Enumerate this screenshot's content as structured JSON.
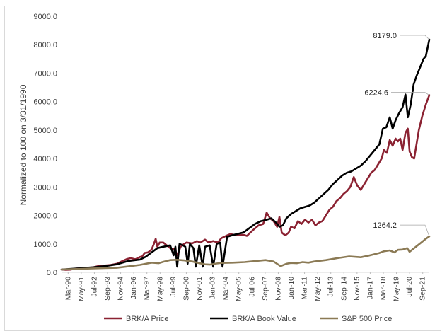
{
  "chart_data": {
    "type": "line",
    "title": "",
    "xlabel": "",
    "ylabel": "Normalized to 100 on 3/31/1990",
    "ylim": [
      0,
      9000
    ],
    "yticks": [
      "0.0",
      "1000.0",
      "2000.0",
      "3000.0",
      "4000.0",
      "5000.0",
      "6000.0",
      "7000.0",
      "8000.0",
      "9000.0"
    ],
    "grid": false,
    "legend": "bottom",
    "x_tick_labels": [
      "Mar-90",
      "May-91",
      "Jul-92",
      "Sep-93",
      "Nov-94",
      "Jan-96",
      "Mar-97",
      "May-98",
      "Jul-99",
      "Sep-00",
      "Nov-01",
      "Jan-03",
      "Mar-04",
      "May-05",
      "Jul-06",
      "Sep-07",
      "Nov-08",
      "Jan-10",
      "Mar-11",
      "May-12",
      "Jul-13",
      "Sep-14",
      "Nov-15",
      "Jan-17",
      "Mar-18",
      "May-19",
      "Jul-20",
      "Sep-21"
    ],
    "x_range": [
      1990.25,
      2021.9
    ],
    "series": [
      {
        "name": "BRK/A Price",
        "color": "#8B2232",
        "points": [
          [
            1990.25,
            100
          ],
          [
            1990.6,
            90
          ],
          [
            1991.0,
            95
          ],
          [
            1991.4,
            130
          ],
          [
            1992.0,
            150
          ],
          [
            1992.5,
            160
          ],
          [
            1993.0,
            180
          ],
          [
            1993.5,
            230
          ],
          [
            1994.0,
            240
          ],
          [
            1994.5,
            260
          ],
          [
            1995.0,
            300
          ],
          [
            1995.5,
            400
          ],
          [
            1995.9,
            470
          ],
          [
            1996.2,
            500
          ],
          [
            1996.6,
            460
          ],
          [
            1997.0,
            540
          ],
          [
            1997.2,
            560
          ],
          [
            1997.4,
            680
          ],
          [
            1997.7,
            700
          ],
          [
            1998.0,
            800
          ],
          [
            1998.2,
            1000
          ],
          [
            1998.35,
            1180
          ],
          [
            1998.5,
            900
          ],
          [
            1998.7,
            1050
          ],
          [
            1999.0,
            1050
          ],
          [
            1999.3,
            950
          ],
          [
            1999.6,
            850
          ],
          [
            2000.0,
            800
          ],
          [
            2000.2,
            600
          ],
          [
            2000.5,
            900
          ],
          [
            2000.8,
            1000
          ],
          [
            2001.0,
            1050
          ],
          [
            2001.5,
            1020
          ],
          [
            2001.9,
            1100
          ],
          [
            2002.2,
            1050
          ],
          [
            2002.6,
            1150
          ],
          [
            2002.9,
            1050
          ],
          [
            2003.3,
            1100
          ],
          [
            2003.7,
            1050
          ],
          [
            2004.0,
            1200
          ],
          [
            2004.4,
            1280
          ],
          [
            2004.8,
            1350
          ],
          [
            2005.2,
            1300
          ],
          [
            2005.5,
            1300
          ],
          [
            2005.9,
            1320
          ],
          [
            2006.2,
            1280
          ],
          [
            2006.5,
            1400
          ],
          [
            2006.9,
            1550
          ],
          [
            2007.2,
            1650
          ],
          [
            2007.6,
            1700
          ],
          [
            2007.9,
            2100
          ],
          [
            2008.2,
            1900
          ],
          [
            2008.5,
            1800
          ],
          [
            2008.8,
            1600
          ],
          [
            2009.0,
            1950
          ],
          [
            2009.2,
            1400
          ],
          [
            2009.5,
            1300
          ],
          [
            2009.8,
            1400
          ],
          [
            2010.0,
            1600
          ],
          [
            2010.3,
            1550
          ],
          [
            2010.6,
            1800
          ],
          [
            2010.9,
            1700
          ],
          [
            2011.2,
            1850
          ],
          [
            2011.5,
            1750
          ],
          [
            2011.8,
            1850
          ],
          [
            2012.1,
            1650
          ],
          [
            2012.4,
            1750
          ],
          [
            2012.7,
            1800
          ],
          [
            2013.0,
            2000
          ],
          [
            2013.3,
            2200
          ],
          [
            2013.6,
            2300
          ],
          [
            2013.9,
            2500
          ],
          [
            2014.2,
            2600
          ],
          [
            2014.5,
            2750
          ],
          [
            2014.8,
            2850
          ],
          [
            2015.1,
            3000
          ],
          [
            2015.4,
            3350
          ],
          [
            2015.7,
            3050
          ],
          [
            2016.0,
            2900
          ],
          [
            2016.3,
            3100
          ],
          [
            2016.6,
            3300
          ],
          [
            2016.9,
            3500
          ],
          [
            2017.2,
            3600
          ],
          [
            2017.5,
            3800
          ],
          [
            2017.8,
            4000
          ],
          [
            2018.0,
            4300
          ],
          [
            2018.25,
            4200
          ],
          [
            2018.5,
            4650
          ],
          [
            2018.75,
            4450
          ],
          [
            2019.0,
            4700
          ],
          [
            2019.2,
            4600
          ],
          [
            2019.4,
            4700
          ],
          [
            2019.6,
            4300
          ],
          [
            2019.85,
            4900
          ],
          [
            2020.05,
            5050
          ],
          [
            2020.2,
            4250
          ],
          [
            2020.4,
            4050
          ],
          [
            2020.6,
            4000
          ],
          [
            2020.8,
            4500
          ],
          [
            2021.0,
            5000
          ],
          [
            2021.3,
            5500
          ],
          [
            2021.6,
            5900
          ],
          [
            2021.9,
            6224.6
          ]
        ]
      },
      {
        "name": "BRK/A Book Value",
        "color": "#000000",
        "points": [
          [
            1990.25,
            100
          ],
          [
            1991.0,
            120
          ],
          [
            1992.0,
            150
          ],
          [
            1993.0,
            180
          ],
          [
            1994.0,
            220
          ],
          [
            1995.0,
            280
          ],
          [
            1996.0,
            400
          ],
          [
            1997.0,
            450
          ],
          [
            1997.5,
            550
          ],
          [
            1998.0,
            700
          ],
          [
            1998.5,
            850
          ],
          [
            1999.0,
            900
          ],
          [
            1999.6,
            950
          ],
          [
            1999.9,
            600
          ],
          [
            2000.05,
            900
          ],
          [
            2000.2,
            200
          ],
          [
            2000.4,
            1000
          ],
          [
            2000.7,
            950
          ],
          [
            2000.9,
            900
          ],
          [
            2001.1,
            300
          ],
          [
            2001.3,
            1000
          ],
          [
            2001.6,
            850
          ],
          [
            2001.8,
            200
          ],
          [
            2002.1,
            950
          ],
          [
            2002.4,
            200
          ],
          [
            2002.6,
            900
          ],
          [
            2003.0,
            950
          ],
          [
            2003.3,
            200
          ],
          [
            2003.6,
            1000
          ],
          [
            2003.9,
            1050
          ],
          [
            2004.1,
            200
          ],
          [
            2004.5,
            1250
          ],
          [
            2004.9,
            1300
          ],
          [
            2005.4,
            1350
          ],
          [
            2005.9,
            1400
          ],
          [
            2006.4,
            1550
          ],
          [
            2006.9,
            1700
          ],
          [
            2007.4,
            1800
          ],
          [
            2007.9,
            1850
          ],
          [
            2008.3,
            1900
          ],
          [
            2008.7,
            1750
          ],
          [
            2009.0,
            1600
          ],
          [
            2009.3,
            1650
          ],
          [
            2009.6,
            1900
          ],
          [
            2010.0,
            2050
          ],
          [
            2010.4,
            2150
          ],
          [
            2010.8,
            2250
          ],
          [
            2011.2,
            2300
          ],
          [
            2011.6,
            2350
          ],
          [
            2012.0,
            2450
          ],
          [
            2012.4,
            2600
          ],
          [
            2012.8,
            2750
          ],
          [
            2013.2,
            2900
          ],
          [
            2013.6,
            3100
          ],
          [
            2014.0,
            3250
          ],
          [
            2014.4,
            3400
          ],
          [
            2014.8,
            3500
          ],
          [
            2015.2,
            3550
          ],
          [
            2015.6,
            3650
          ],
          [
            2016.0,
            3750
          ],
          [
            2016.4,
            3900
          ],
          [
            2016.8,
            4100
          ],
          [
            2017.2,
            4300
          ],
          [
            2017.6,
            4500
          ],
          [
            2017.9,
            5050
          ],
          [
            2018.2,
            5100
          ],
          [
            2018.5,
            5450
          ],
          [
            2018.75,
            5050
          ],
          [
            2019.0,
            5350
          ],
          [
            2019.3,
            5600
          ],
          [
            2019.6,
            5800
          ],
          [
            2019.85,
            6250
          ],
          [
            2020.05,
            5450
          ],
          [
            2020.3,
            5900
          ],
          [
            2020.55,
            6600
          ],
          [
            2020.8,
            6900
          ],
          [
            2021.1,
            7200
          ],
          [
            2021.4,
            7500
          ],
          [
            2021.6,
            7600
          ],
          [
            2021.9,
            8179.0
          ]
        ]
      },
      {
        "name": "S&P 500 Price",
        "color": "#8B7A55",
        "points": [
          [
            1990.25,
            100
          ],
          [
            1991.0,
            110
          ],
          [
            1992.0,
            125
          ],
          [
            1993.0,
            140
          ],
          [
            1994.0,
            150
          ],
          [
            1995.0,
            160
          ],
          [
            1996.0,
            210
          ],
          [
            1997.0,
            260
          ],
          [
            1998.0,
            340
          ],
          [
            1998.6,
            320
          ],
          [
            1999.0,
            370
          ],
          [
            1999.6,
            430
          ],
          [
            2000.2,
            440
          ],
          [
            2000.8,
            420
          ],
          [
            2001.5,
            380
          ],
          [
            2002.0,
            330
          ],
          [
            2002.6,
            280
          ],
          [
            2003.0,
            270
          ],
          [
            2003.6,
            310
          ],
          [
            2004.0,
            330
          ],
          [
            2005.0,
            340
          ],
          [
            2006.0,
            360
          ],
          [
            2007.0,
            400
          ],
          [
            2007.8,
            430
          ],
          [
            2008.5,
            380
          ],
          [
            2009.1,
            220
          ],
          [
            2009.6,
            300
          ],
          [
            2010.0,
            330
          ],
          [
            2010.5,
            320
          ],
          [
            2011.0,
            360
          ],
          [
            2011.5,
            340
          ],
          [
            2012.0,
            380
          ],
          [
            2013.0,
            430
          ],
          [
            2014.0,
            500
          ],
          [
            2015.0,
            560
          ],
          [
            2015.7,
            540
          ],
          [
            2016.0,
            530
          ],
          [
            2016.6,
            580
          ],
          [
            2017.0,
            620
          ],
          [
            2017.6,
            680
          ],
          [
            2018.0,
            740
          ],
          [
            2018.5,
            770
          ],
          [
            2018.9,
            700
          ],
          [
            2019.2,
            790
          ],
          [
            2019.6,
            800
          ],
          [
            2020.0,
            850
          ],
          [
            2020.2,
            720
          ],
          [
            2020.5,
            820
          ],
          [
            2020.9,
            950
          ],
          [
            2021.3,
            1080
          ],
          [
            2021.6,
            1180
          ],
          [
            2021.9,
            1264.2
          ]
        ]
      }
    ],
    "annotations": [
      {
        "series": "BRK/A Book Value",
        "label": "8179.0"
      },
      {
        "series": "BRK/A Price",
        "label": "6224.6"
      },
      {
        "series": "S&P 500 Price",
        "label": "1264.2"
      }
    ]
  }
}
